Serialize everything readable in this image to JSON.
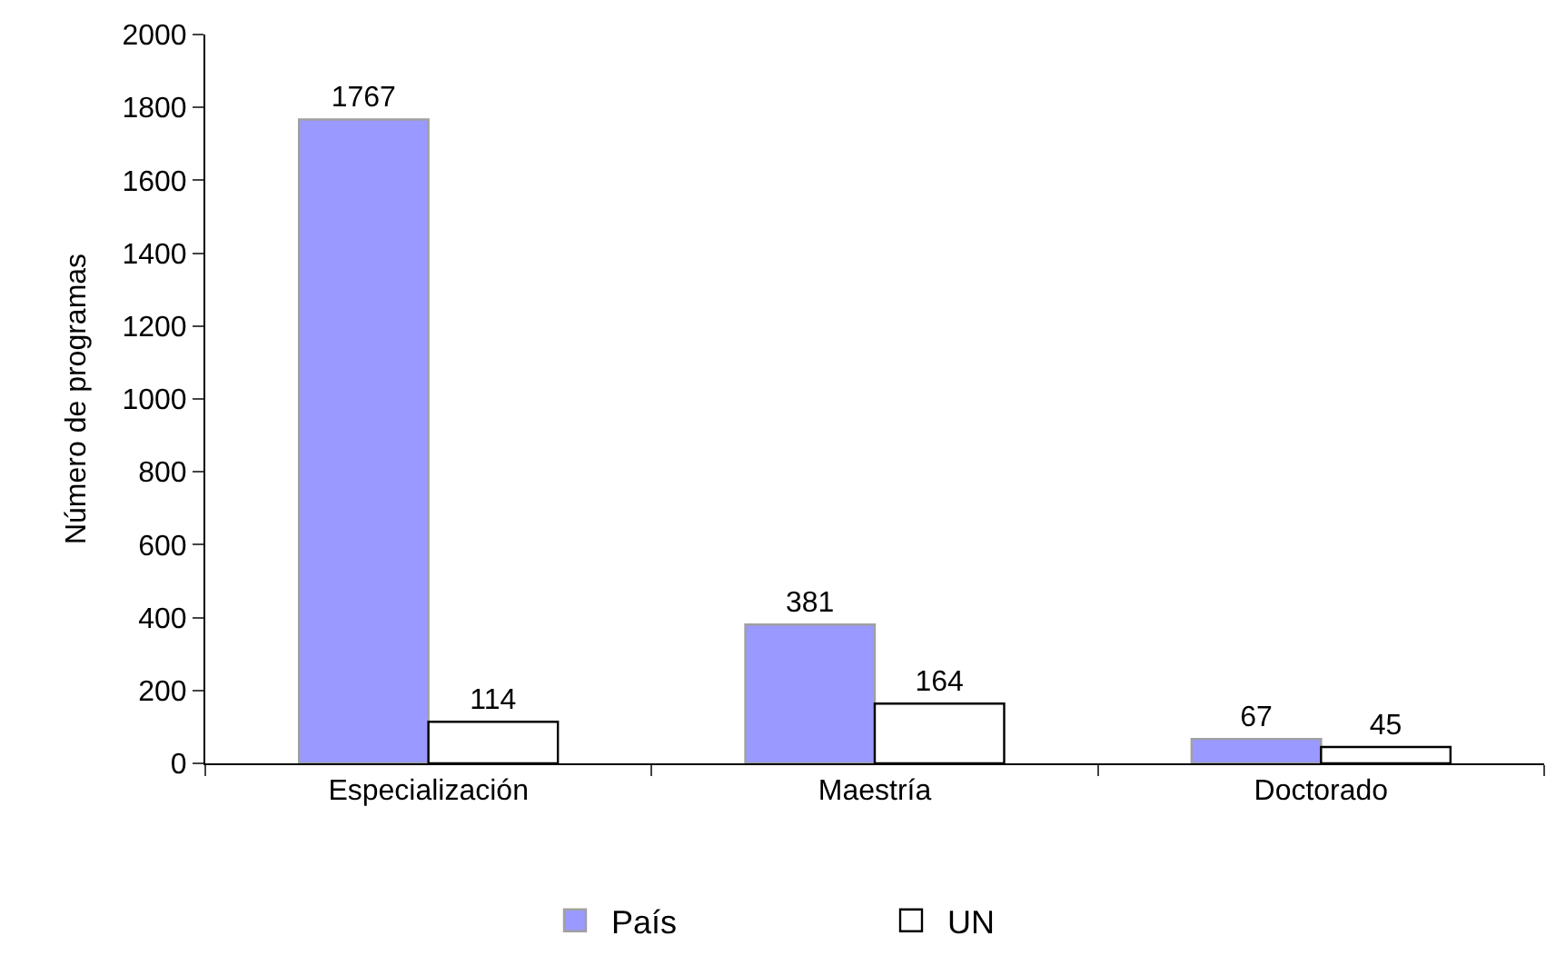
{
  "chart_data": {
    "type": "bar",
    "ylabel": "Número de programas",
    "categories": [
      "Especialización",
      "Maestría",
      "Doctorado"
    ],
    "series": [
      {
        "name": "País",
        "color": "#9999ff",
        "values": [
          1767,
          381,
          67
        ]
      },
      {
        "name": "UN",
        "color": "#ffffff",
        "values": [
          114,
          164,
          45
        ]
      }
    ],
    "ylim": [
      0,
      2000
    ],
    "yticks": [
      0,
      200,
      400,
      600,
      800,
      1000,
      1200,
      1400,
      1600,
      1800,
      2000
    ],
    "data_labels": true,
    "legend": "bottom"
  }
}
